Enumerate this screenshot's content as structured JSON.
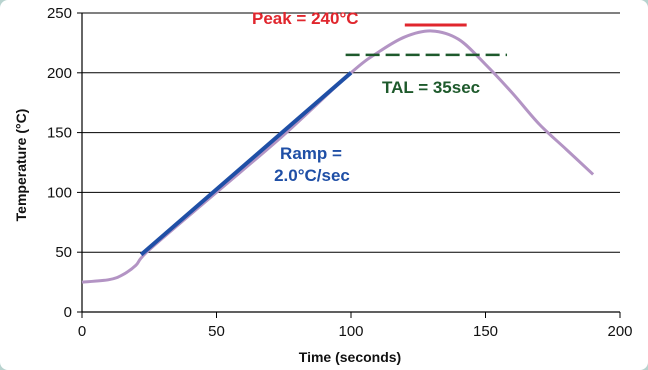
{
  "chart_data": {
    "type": "line",
    "xlabel": "Time (seconds)",
    "ylabel": "Temperature (°C)",
    "xlim": [
      0,
      200
    ],
    "ylim": [
      0,
      250
    ],
    "xticks": [
      0,
      50,
      100,
      150,
      200
    ],
    "yticks": [
      0,
      50,
      100,
      150,
      200,
      250
    ],
    "grid": "horizontal",
    "series": [
      {
        "color": "#b394c4",
        "points": [
          [
            0,
            25
          ],
          [
            10,
            27
          ],
          [
            15,
            31
          ],
          [
            20,
            39
          ],
          [
            25,
            52
          ],
          [
            50,
            100
          ],
          [
            75,
            148
          ],
          [
            100,
            200
          ],
          [
            110,
            217
          ],
          [
            120,
            230
          ],
          [
            130,
            235
          ],
          [
            140,
            228
          ],
          [
            150,
            207
          ],
          [
            160,
            183
          ],
          [
            170,
            157
          ],
          [
            180,
            136
          ],
          [
            190,
            115
          ]
        ]
      },
      {
        "name": "Ramp = 2.0°C/sec",
        "color": "#1f4fa6",
        "points": [
          [
            22,
            48
          ],
          [
            100,
            200
          ]
        ]
      },
      {
        "name": "Peak = 240°C",
        "color": "#e0262d",
        "points": [
          [
            120,
            240
          ],
          [
            143,
            240
          ]
        ]
      },
      {
        "name": "TAL = 35sec",
        "color": "#1e5a2c",
        "style": "dashed",
        "points": [
          [
            98,
            215
          ],
          [
            158,
            215
          ]
        ]
      }
    ],
    "annotations": [
      {
        "id": "peak",
        "line1": "Peak = 240°C",
        "color": "#e0262d"
      },
      {
        "id": "tal",
        "line1": "TAL = 35sec",
        "color": "#1e5a2c"
      },
      {
        "id": "ramp",
        "line1": "Ramp =",
        "line2": "2.0°C/sec",
        "color": "#1f4fa6"
      }
    ]
  }
}
